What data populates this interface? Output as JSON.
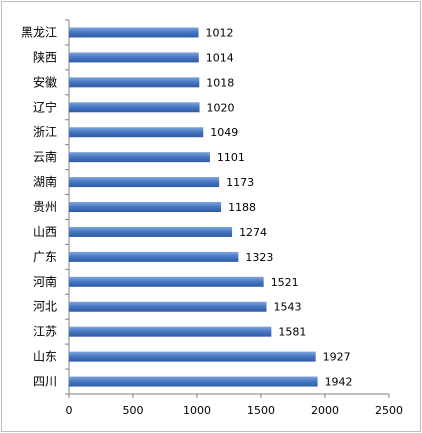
{
  "chart_data": {
    "type": "bar",
    "orientation": "horizontal",
    "categories": [
      "黑龙江",
      "陕西",
      "安徽",
      "辽宁",
      "浙江",
      "云南",
      "湖南",
      "贵州",
      "山西",
      "广东",
      "河南",
      "河北",
      "江苏",
      "山东",
      "四川"
    ],
    "values": [
      1012,
      1014,
      1018,
      1020,
      1049,
      1101,
      1173,
      1188,
      1274,
      1323,
      1521,
      1543,
      1581,
      1927,
      1942
    ],
    "xlim": [
      0,
      2500
    ],
    "xticks": [
      "0",
      "500",
      "1000",
      "1500",
      "2000",
      "2500"
    ],
    "title": "",
    "xlabel": "",
    "ylabel": "",
    "grid": false,
    "legend": "none",
    "bar_color": "#3a6ab5",
    "bar_highlight": "#7fa6dd"
  }
}
